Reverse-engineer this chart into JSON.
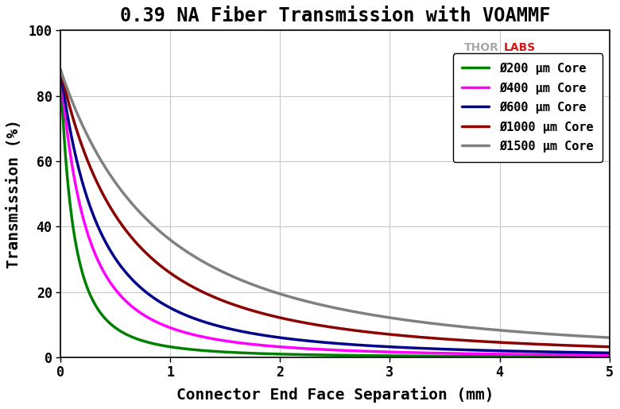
{
  "title": "0.39 NA Fiber Transmission with VOAMMF",
  "xlabel": "Connector End Face Separation (mm)",
  "ylabel": "Transmission (%)",
  "xlim": [
    0,
    5
  ],
  "ylim": [
    0,
    100
  ],
  "xticks": [
    0,
    1,
    2,
    3,
    4,
    5
  ],
  "yticks": [
    0,
    20,
    40,
    60,
    80,
    100
  ],
  "NA": 0.39,
  "fiber_diameters_um": [
    200,
    400,
    600,
    1000,
    1500
  ],
  "colors": [
    "#008000",
    "#FF00FF",
    "#00008B",
    "#8B0000",
    "#808080"
  ],
  "labels": [
    "Ø200 μm Core",
    "Ø400 μm Core",
    "Ø600 μm Core",
    "Ø1000 μm Core",
    "Ø1500 μm Core"
  ],
  "initial_transmission": 88.0,
  "thorlabs_color_thor": "#A0A0A0",
  "thorlabs_color_labs": "#CC0000",
  "background_color": "#FFFFFF",
  "grid_color": "#C8C8C8",
  "title_fontsize": 17,
  "axis_label_fontsize": 14,
  "tick_fontsize": 12,
  "legend_fontsize": 12,
  "linewidth": 2.5
}
